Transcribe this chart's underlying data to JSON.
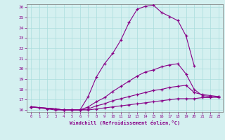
{
  "xlabel": "Windchill (Refroidissement éolien,°C)",
  "xlim": [
    0,
    23
  ],
  "ylim": [
    16,
    26
  ],
  "xticks": [
    0,
    1,
    2,
    3,
    4,
    5,
    6,
    7,
    8,
    9,
    10,
    11,
    12,
    13,
    14,
    15,
    16,
    17,
    18,
    19,
    20,
    21,
    22,
    23
  ],
  "yticks": [
    16,
    17,
    18,
    19,
    20,
    21,
    22,
    23,
    24,
    25,
    26
  ],
  "bg_color": "#d4f0f0",
  "line_color": "#880088",
  "grid_color": "#aadddd",
  "curves": [
    {
      "x": [
        0,
        1,
        2,
        3,
        4,
        5,
        6,
        7,
        8,
        9,
        10,
        11,
        12,
        13,
        14,
        15,
        16,
        17,
        18,
        19,
        20
      ],
      "y": [
        16.3,
        16.2,
        16.1,
        16.0,
        16.0,
        16.0,
        16.0,
        17.3,
        19.2,
        20.5,
        21.5,
        22.8,
        24.5,
        25.8,
        26.1,
        26.2,
        25.5,
        25.1,
        24.7,
        23.2,
        20.3
      ]
    },
    {
      "x": [
        0,
        3,
        4,
        5,
        6,
        7,
        8,
        9,
        10,
        11,
        12,
        13,
        14,
        15,
        16,
        17,
        18,
        19,
        20,
        21,
        22,
        23
      ],
      "y": [
        16.3,
        16.1,
        16.0,
        16.0,
        16.0,
        16.3,
        16.8,
        17.2,
        17.8,
        18.3,
        18.8,
        19.3,
        19.7,
        19.9,
        20.2,
        20.4,
        20.5,
        19.5,
        18.0,
        17.4,
        17.3,
        17.2
      ]
    },
    {
      "x": [
        0,
        3,
        4,
        5,
        6,
        7,
        8,
        9,
        10,
        11,
        12,
        13,
        14,
        15,
        16,
        17,
        18,
        19,
        20,
        21,
        22,
        23
      ],
      "y": [
        16.3,
        16.1,
        16.0,
        16.0,
        16.0,
        16.1,
        16.4,
        16.6,
        16.9,
        17.1,
        17.3,
        17.5,
        17.7,
        17.9,
        18.0,
        18.2,
        18.3,
        18.4,
        17.7,
        17.5,
        17.4,
        17.3
      ]
    },
    {
      "x": [
        0,
        3,
        4,
        5,
        6,
        7,
        8,
        9,
        10,
        11,
        12,
        13,
        14,
        15,
        16,
        17,
        18,
        19,
        20,
        21,
        22,
        23
      ],
      "y": [
        16.3,
        16.1,
        16.0,
        16.0,
        16.0,
        16.0,
        16.1,
        16.2,
        16.3,
        16.4,
        16.5,
        16.6,
        16.7,
        16.8,
        16.9,
        17.0,
        17.1,
        17.1,
        17.1,
        17.2,
        17.2,
        17.3
      ]
    }
  ]
}
